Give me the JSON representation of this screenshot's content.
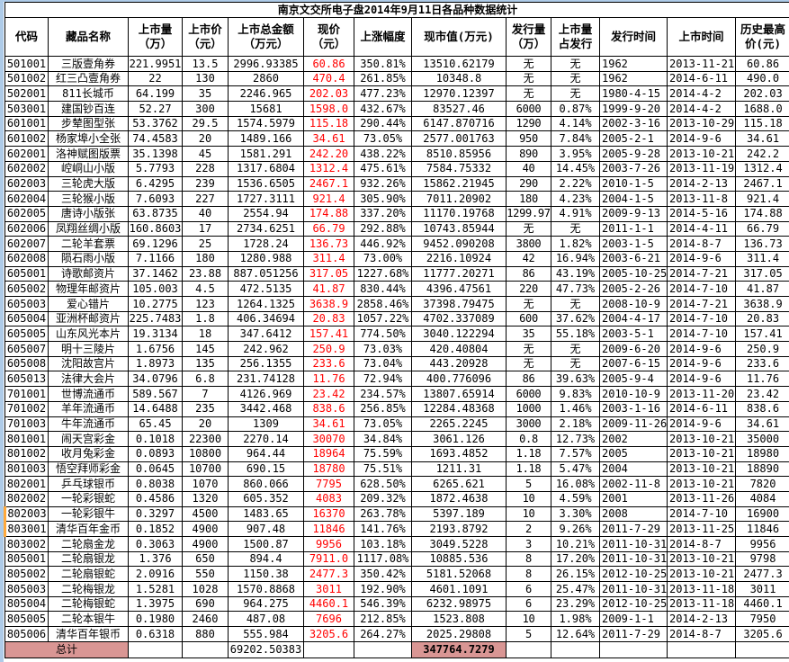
{
  "title": "南京文交所电子盘2014年9月11日各品种数据统计",
  "colors": {
    "price_red": "#FF0000",
    "total_pink": "#D99694",
    "marker_orange": "#FFA93C",
    "edge_blue": "#AECBE8",
    "grid": "#000000"
  },
  "table": {
    "headers": [
      "代码",
      "藏品名称",
      "上市量\n（万）",
      "上市价\n（元）",
      "上市总金额\n（万元）",
      "现价\n（元）",
      "上涨幅度",
      "现市值(万元)",
      "发行量\n（万）",
      "上市量\n占发行",
      "发行时间",
      "上市时间",
      "历史最高\n价(元)"
    ],
    "column_keys": [
      "code",
      "name",
      "listed-volume",
      "listed-price",
      "listed-total-amount",
      "current-price",
      "change-pct",
      "market-value",
      "issue-volume",
      "listed-pct-of-issue",
      "issue-date",
      "listing-date",
      "historical-high"
    ],
    "rows": [
      [
        "501001",
        "三版壹角券",
        "221.9951",
        "13.5",
        "2996.93385",
        "60.86",
        "350.81%",
        "13510.62179",
        "无",
        "无",
        "1962",
        "2013-11-21",
        "60.86"
      ],
      [
        "501002",
        "红三凸壹角券",
        "22",
        "130",
        "2860",
        "470.4",
        "261.85%",
        "10348.8",
        "无",
        "无",
        "1962",
        "2014-6-11",
        "490.0"
      ],
      [
        "502001",
        "811长城币",
        "64.199",
        "35",
        "2246.965",
        "202.03",
        "477.23%",
        "12970.12397",
        "无",
        "无",
        "1980-4-15",
        "2014-4-2",
        "202.03"
      ],
      [
        "503001",
        "建国钞百连",
        "52.27",
        "300",
        "15681",
        "1598.0",
        "432.67%",
        "83527.46",
        "6000",
        "0.87%",
        "1999-9-20",
        "2014-4-2",
        "1688.0"
      ],
      [
        "601001",
        "步辇图型张",
        "53.3762",
        "29.5",
        "1574.5979",
        "115.18",
        "290.44%",
        "6147.870716",
        "1290",
        "4.14%",
        "2002-3-16",
        "2013-10-29",
        "115.18"
      ],
      [
        "601002",
        "杨家埠小全张",
        "74.4583",
        "20",
        "1489.166",
        "34.61",
        "73.05%",
        "2577.001763",
        "950",
        "7.84%",
        "2005-2-1",
        "2014-9-6",
        "34.61"
      ],
      [
        "602001",
        "洛神赋图版票",
        "35.1398",
        "45",
        "1581.291",
        "242.20",
        "438.22%",
        "8510.85956",
        "890",
        "3.95%",
        "2005-9-28",
        "2013-10-21",
        "242.2"
      ],
      [
        "602002",
        "崆峒山小版",
        "5.7793",
        "228",
        "1317.6804",
        "1312.4",
        "475.61%",
        "7584.75332",
        "40",
        "14.45%",
        "2003-7-26",
        "2013-11-19",
        "1312.4"
      ],
      [
        "602003",
        "三轮虎大版",
        "6.4295",
        "239",
        "1536.6505",
        "2467.1",
        "932.26%",
        "15862.21945",
        "290",
        "2.22%",
        "2010-1-5",
        "2014-2-13",
        "2467.1"
      ],
      [
        "602004",
        "三轮猴小版",
        "7.6093",
        "227",
        "1727.3111",
        "921.4",
        "305.90%",
        "7011.20902",
        "180",
        "4.23%",
        "2004-1-5",
        "2013-11-8",
        "921.4"
      ],
      [
        "602005",
        "唐诗小版张",
        "63.8735",
        "40",
        "2554.94",
        "174.88",
        "337.20%",
        "11170.19768",
        "1299.97",
        "4.91%",
        "2009-9-13",
        "2014-5-16",
        "174.88"
      ],
      [
        "602006",
        "凤翔丝绸小版",
        "160.8603",
        "17",
        "2734.6251",
        "66.79",
        "292.88%",
        "10743.85944",
        "无",
        "无",
        "2011-1-1",
        "2014-4-11",
        "66.79"
      ],
      [
        "602007",
        "二轮羊套票",
        "69.1296",
        "25",
        "1728.24",
        "136.73",
        "446.92%",
        "9452.090208",
        "3800",
        "1.82%",
        "2003-1-5",
        "2014-8-7",
        "136.73"
      ],
      [
        "602008",
        "陨石雨小版",
        "7.1166",
        "180",
        "1280.988",
        "311.4",
        "73.00%",
        "2216.10924",
        "42",
        "16.94%",
        "2003-6-21",
        "2014-9-6",
        "311.4"
      ],
      [
        "605001",
        "诗歌邮资片",
        "37.1462",
        "23.88",
        "887.051256",
        "317.05",
        "1227.68%",
        "11777.20271",
        "86",
        "43.19%",
        "2005-10-25",
        "2014-7-21",
        "317.05"
      ],
      [
        "605002",
        "物理年邮资片",
        "105.003",
        "4.5",
        "472.5135",
        "41.87",
        "830.44%",
        "4396.47561",
        "220",
        "47.73%",
        "2005-2-26",
        "2014-7-10",
        "41.87"
      ],
      [
        "605003",
        "爱心错片",
        "10.2775",
        "123",
        "1264.1325",
        "3638.9",
        "2858.46%",
        "37398.79475",
        "无",
        "无",
        "2008-10-9",
        "2014-7-21",
        "3638.9"
      ],
      [
        "605004",
        "亚洲杯邮资片",
        "225.7483",
        "1.8",
        "406.34694",
        "20.83",
        "1057.22%",
        "4702.337089",
        "600",
        "37.62%",
        "2004-4-17",
        "2014-7-10",
        "20.83"
      ],
      [
        "605005",
        "山东风光本片",
        "19.3134",
        "18",
        "347.6412",
        "157.41",
        "774.50%",
        "3040.122294",
        "35",
        "55.18%",
        "2003-5-1",
        "2014-7-10",
        "157.41"
      ],
      [
        "605007",
        "明十三陵片",
        "1.6756",
        "145",
        "242.962",
        "250.9",
        "73.03%",
        "420.40804",
        "无",
        "无",
        "2009-6-20",
        "2014-9-6",
        "250.9"
      ],
      [
        "605008",
        "沈阳故宫片",
        "1.8973",
        "135",
        "256.1355",
        "233.6",
        "73.04%",
        "443.20928",
        "无",
        "无",
        "2007-6-15",
        "2014-9-6",
        "233.6"
      ],
      [
        "605013",
        "法律大会片",
        "34.0796",
        "6.8",
        "231.74128",
        "11.76",
        "72.94%",
        "400.776096",
        "86",
        "39.63%",
        "2005-9-4",
        "2014-9-6",
        "11.76"
      ],
      [
        "701001",
        "世博流通币",
        "589.567",
        "7",
        "4126.969",
        "23.42",
        "234.57%",
        "13807.65914",
        "6000",
        "9.83%",
        "2010-10-9",
        "2013-11-20",
        "23.42"
      ],
      [
        "701002",
        "羊年流通币",
        "14.6488",
        "235",
        "3442.468",
        "838.6",
        "256.85%",
        "12284.48368",
        "1000",
        "1.46%",
        "2003-1-16",
        "2014-6-11",
        "838.6"
      ],
      [
        "701003",
        "牛年流通币",
        "65.45",
        "20",
        "1309",
        "34.61",
        "73.05%",
        "2265.2245",
        "3000",
        "2.18%",
        "2009-11-26",
        "2014-9-6",
        "34.61"
      ],
      [
        "801001",
        "闹天宫彩金",
        "0.1018",
        "22300",
        "2270.14",
        "30070",
        "34.84%",
        "3061.126",
        "0.8",
        "12.73%",
        "2002",
        "2013-10-21",
        "35000"
      ],
      [
        "801002",
        "收月兔彩金",
        "0.0893",
        "10800",
        "964.44",
        "18964",
        "75.59%",
        "1693.4852",
        "1.18",
        "7.57%",
        "2005",
        "2013-10-21",
        "18980"
      ],
      [
        "801003",
        "悟空拜师彩金",
        "0.0645",
        "10700",
        "690.15",
        "18780",
        "75.51%",
        "1211.31",
        "1.18",
        "5.47%",
        "2004",
        "2013-10-21",
        "18890"
      ],
      [
        "802001",
        "乒乓球银币",
        "0.8038",
        "1070",
        "860.066",
        "7795",
        "628.50%",
        "6265.621",
        "5",
        "16.08%",
        "2002-11-8",
        "2013-10-21",
        "7820"
      ],
      [
        "802002",
        "一轮彩银蛇",
        "0.4586",
        "1320",
        "605.352",
        "4083",
        "209.32%",
        "1872.4638",
        "10",
        "4.59%",
        "2001",
        "2013-11-26",
        "4084"
      ],
      [
        "802003",
        "一轮彩银牛",
        "0.3297",
        "4500",
        "1483.65",
        "16370",
        "263.78%",
        "5397.189",
        "10",
        "3.30%",
        "2008",
        "2014-7-10",
        "16900"
      ],
      [
        "803001",
        "清华百年金币",
        "0.1852",
        "4900",
        "907.48",
        "11846",
        "141.76%",
        "2193.8792",
        "2",
        "9.26%",
        "2011-7-29",
        "2013-11-25",
        "11846"
      ],
      [
        "803002",
        "二轮扇金龙",
        "0.3063",
        "4900",
        "1500.87",
        "9956",
        "103.18%",
        "3049.5228",
        "3",
        "10.21%",
        "2011-10-31",
        "2014-8-7",
        "9956"
      ],
      [
        "805001",
        "二轮扇银龙",
        "1.376",
        "650",
        "894.4",
        "7911.0",
        "1117.08%",
        "10885.536",
        "8",
        "17.20%",
        "2011-10-31",
        "2013-10-21",
        "9798"
      ],
      [
        "805002",
        "二轮扇银蛇",
        "2.0916",
        "550",
        "1150.38",
        "2477.3",
        "350.42%",
        "5181.52068",
        "8",
        "26.15%",
        "2012-10-25",
        "2013-10-21",
        "2477.3"
      ],
      [
        "805003",
        "二轮梅银龙",
        "1.5281",
        "1028",
        "1570.8868",
        "3011",
        "192.90%",
        "4601.1091",
        "6",
        "25.47%",
        "2011-10-31",
        "2013-11-18",
        "3011"
      ],
      [
        "805004",
        "二轮梅银蛇",
        "1.3975",
        "690",
        "964.275",
        "4460.1",
        "546.39%",
        "6232.98975",
        "6",
        "23.29%",
        "2012-10-25",
        "2013-11-18",
        "4460.1"
      ],
      [
        "805005",
        "二轮本银牛",
        "0.1980",
        "2460",
        "487.08",
        "7696",
        "212.85%",
        "1523.808",
        "10",
        "1.98%",
        "2009-1-1",
        "2014-2-13",
        "7950"
      ],
      [
        "805006",
        "清华百年银币",
        "0.6318",
        "880",
        "555.984",
        "3205.6",
        "264.27%",
        "2025.29808",
        "5",
        "12.64%",
        "2011-7-29",
        "2014-8-7",
        "3205.6"
      ]
    ],
    "highlighted_codes": [
      "802003",
      "803001"
    ],
    "total": {
      "label": "总计",
      "listed_total_amount": "69202.50383",
      "market_value_total": "347764.7279"
    }
  }
}
